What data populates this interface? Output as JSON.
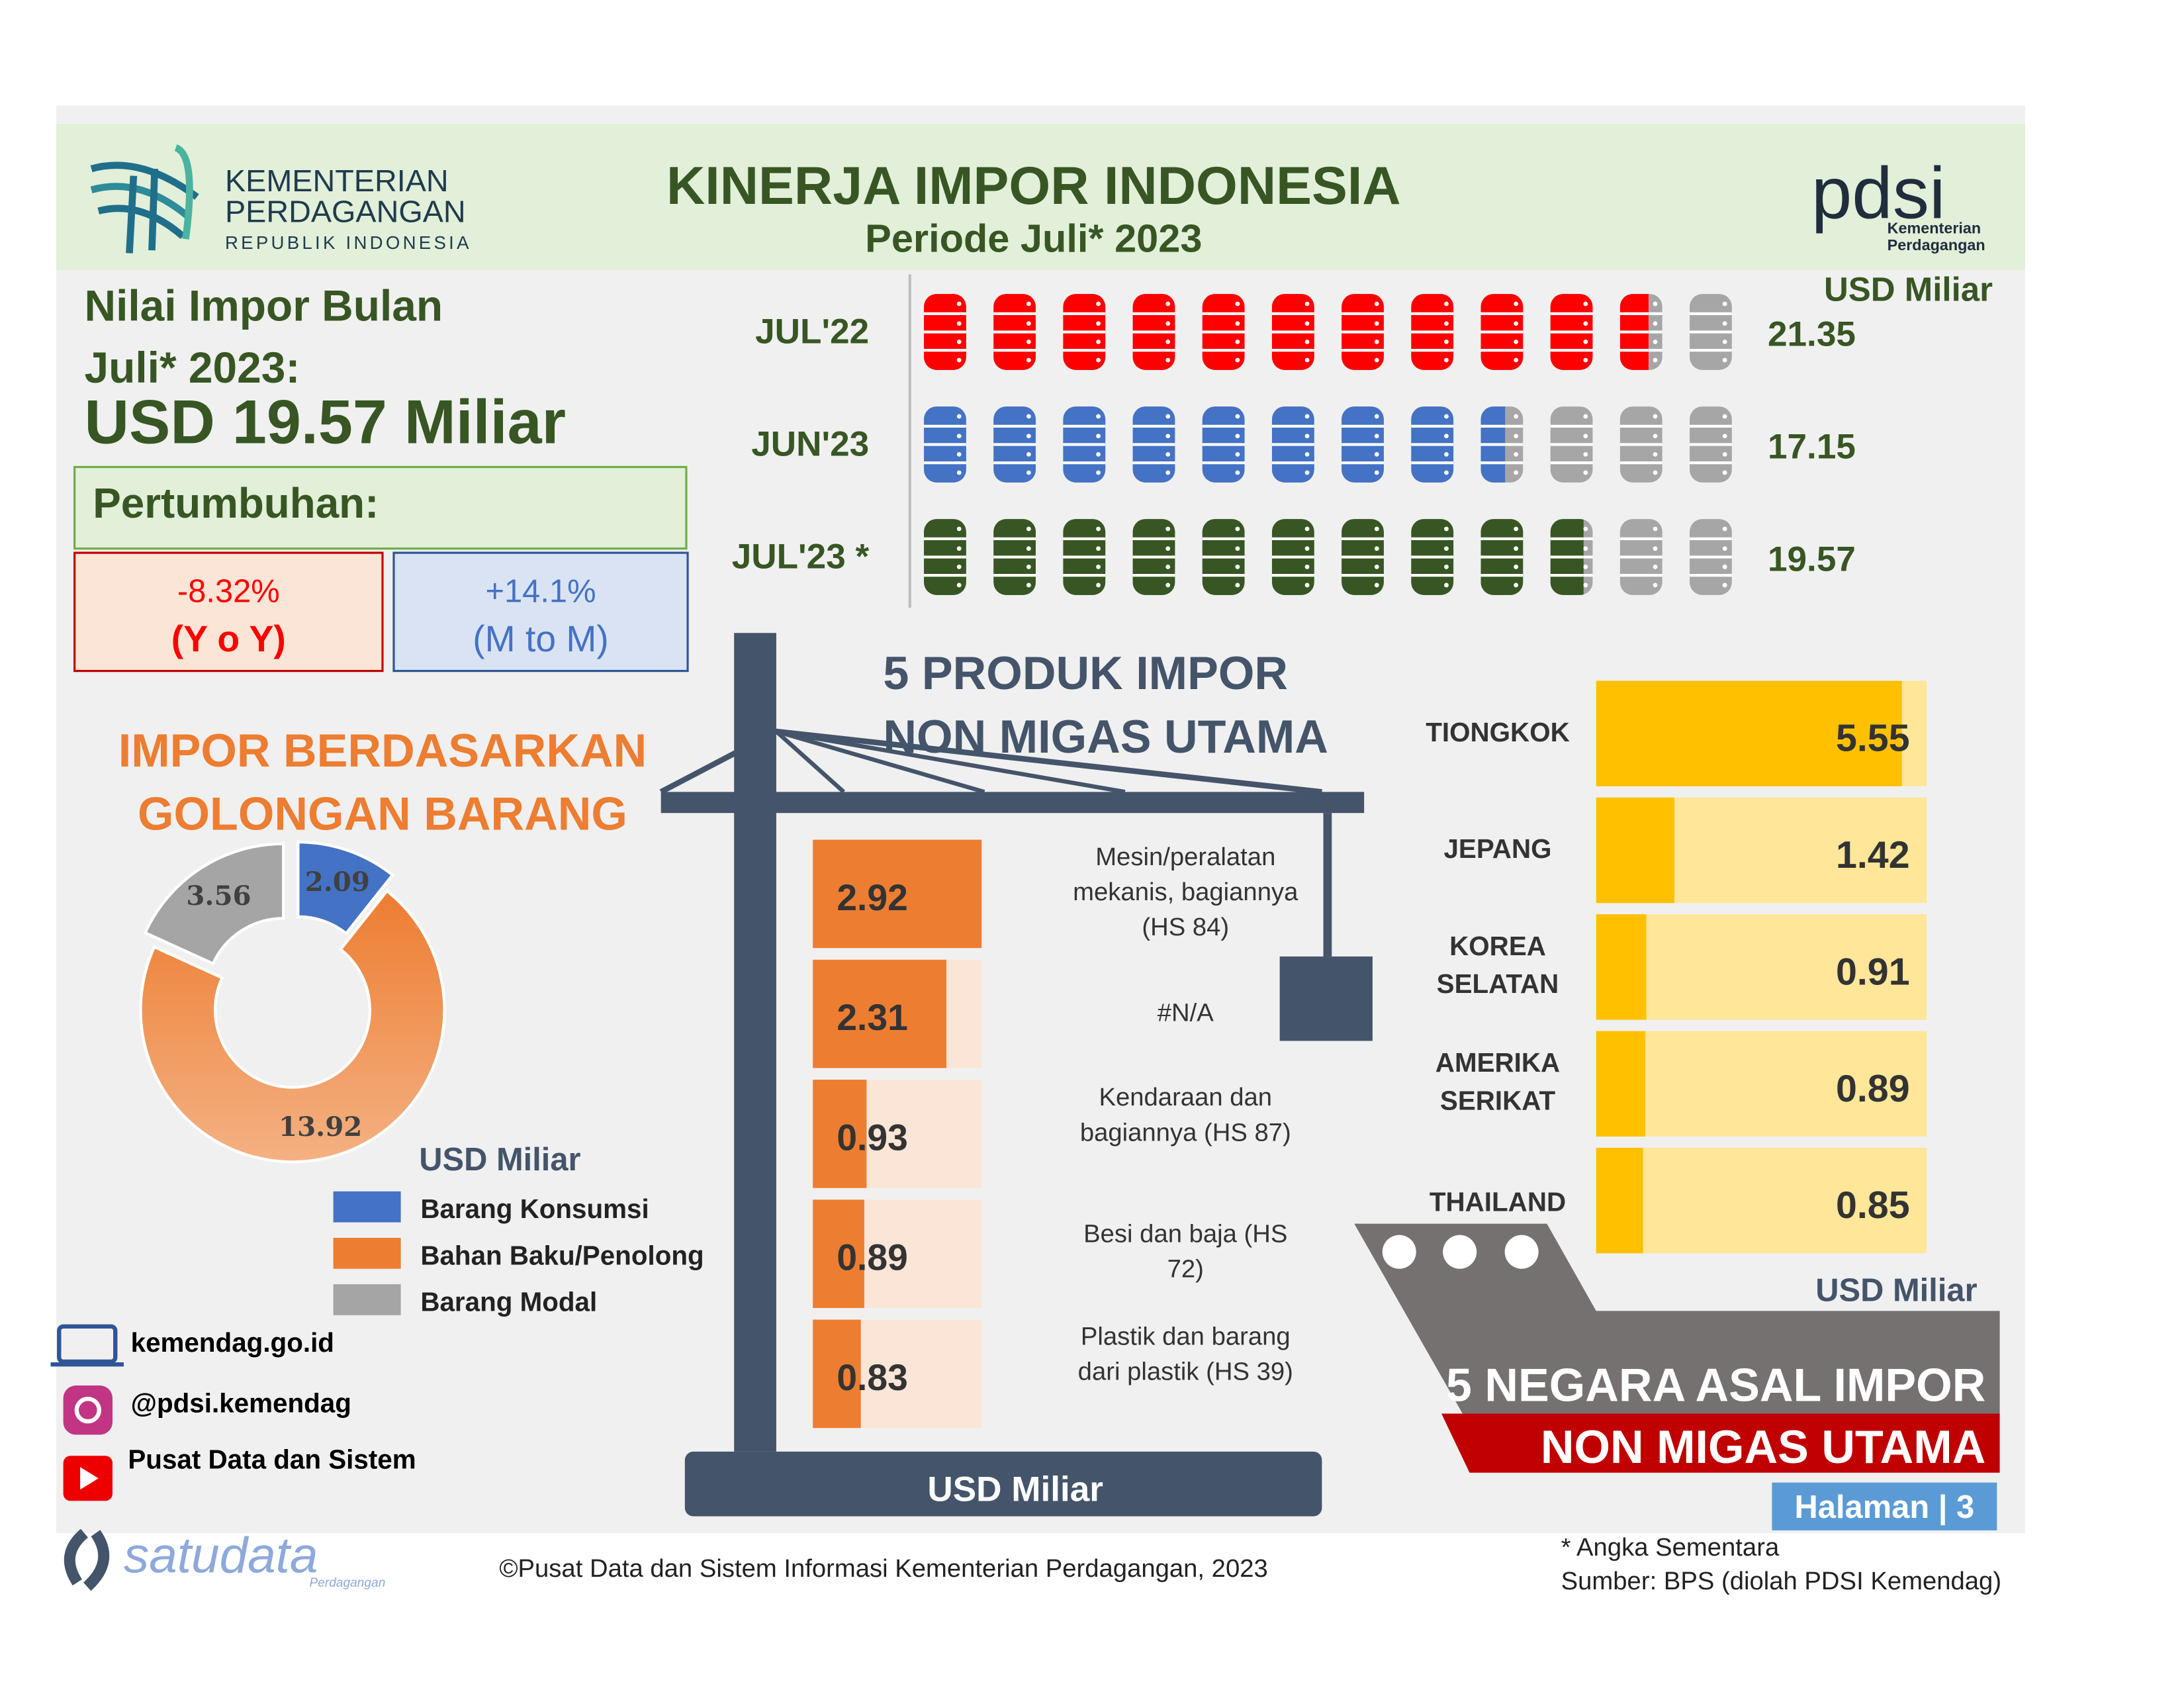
{
  "header": {
    "org": [
      "KEMENTERIAN",
      "PERDAGANGAN",
      "REPUBLIK INDONESIA"
    ],
    "title": "KINERJA IMPOR INDONESIA",
    "subtitle": "Periode Juli* 2023",
    "logo": "pdsi",
    "logo_sub": [
      "Kementerian",
      "Perdagangan"
    ]
  },
  "summary": {
    "label": [
      "Nilai Impor Bulan",
      "Juli* 2023:"
    ],
    "value": "USD 19.57 Miliar",
    "growth_title": "Pertumbuhan:",
    "yoy": "-8.32%",
    "yoy_label": "(Y o Y)",
    "mtm": "+14.1%",
    "mtm_label": "(M to M)"
  },
  "chart_data": [
    {
      "type": "pictograph",
      "unit": "USD Miliar",
      "categories": [
        "JUL'22",
        "JUN'23",
        "JUL'23 *"
      ],
      "values": [
        21.35,
        17.15,
        19.57
      ],
      "colors": [
        "#ff0000",
        "#4472c4",
        "#375623"
      ],
      "xlim": [
        0,
        24
      ]
    },
    {
      "type": "donut",
      "title": [
        "IMPOR BERDASARKAN",
        "GOLONGAN BARANG"
      ],
      "unit": "USD Miliar",
      "categories": [
        "Barang Konsumsi",
        "Bahan Baku/Penolong",
        "Barang Modal"
      ],
      "values": [
        2.09,
        13.92,
        3.56
      ],
      "colors": [
        "#4472c4",
        "#ed7d31",
        "#a5a5a5"
      ]
    },
    {
      "type": "hbar",
      "title": [
        "5 PRODUK IMPOR",
        "NON MIGAS UTAMA"
      ],
      "unit": "USD Miliar",
      "categories": [
        "Mesin/peralatan mekanis, bagiannya  (HS 84)",
        "#N/A",
        "Kendaraan dan bagiannya (HS 87)",
        "Besi dan baja (HS 72)",
        "Plastik dan barang dari plastik (HS 39)"
      ],
      "values": [
        2.92,
        2.31,
        0.93,
        0.89,
        0.83
      ],
      "color": "#ed7d31",
      "xlim": [
        0,
        2.92
      ]
    },
    {
      "type": "hbar",
      "title": [
        "5 NEGARA ASAL IMPOR",
        "NON MIGAS UTAMA"
      ],
      "unit": "USD Miliar",
      "categories": [
        "TIONGKOK",
        "JEPANG",
        "KOREA SELATAN",
        "AMERIKA SERIKAT",
        "THAILAND"
      ],
      "values": [
        5.55,
        1.42,
        0.91,
        0.89,
        0.85
      ],
      "color": "#ffc000",
      "xlim": [
        0,
        6
      ]
    }
  ],
  "footer": {
    "links": [
      "kemendag.go.id",
      "@pdsi.kemendag",
      "Pusat Data dan Sistem"
    ],
    "brand": "satudata",
    "brand_sub": "Perdagangan",
    "copyright": "©Pusat Data dan Sistem Informasi Kementerian Perdagangan, 2023",
    "note": "* Angka Sementara",
    "source": "Sumber: BPS (diolah PDSI Kemendag)",
    "page": "Halaman | 3"
  }
}
